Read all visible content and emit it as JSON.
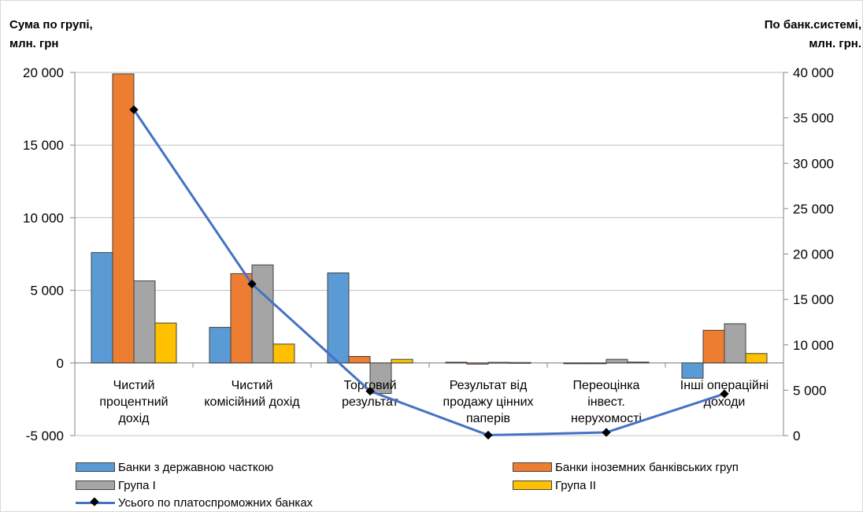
{
  "left_axis_title": [
    "Сума по групі,",
    "млн. грн"
  ],
  "right_axis_title": [
    "По банк.системі,",
    "млн. грн."
  ],
  "chart_data": {
    "type": "bar",
    "categories": [
      [
        "Чистий",
        "процентний",
        "дохід"
      ],
      [
        "Чистий",
        "комісійний дохід"
      ],
      [
        "Торговий",
        "результат"
      ],
      [
        "Результат від",
        "продажу цінних",
        "паперів"
      ],
      [
        "Переоцінка",
        "інвест.",
        "нерухомості"
      ],
      [
        "Інші операційні",
        "доходи"
      ]
    ],
    "series": [
      {
        "name": "Банки з державною часткою",
        "color": "#5b9bd5",
        "values": [
          7600,
          2450,
          6200,
          50,
          -30,
          -1050
        ]
      },
      {
        "name": "Банки іноземних банківських груп",
        "color": "#ed7d31",
        "values": [
          19900,
          6150,
          450,
          -80,
          0,
          2250
        ]
      },
      {
        "name": "Група I",
        "color": "#a5a5a5",
        "values": [
          5650,
          6750,
          -2100,
          40,
          250,
          2700
        ]
      },
      {
        "name": "Група II",
        "color": "#ffc000",
        "values": [
          2750,
          1300,
          250,
          30,
          60,
          650
        ]
      }
    ],
    "line_series": {
      "name": "Усього по платоспроможних банках",
      "color": "#4472c4",
      "axis": "right",
      "values": [
        35900,
        16700,
        4900,
        50,
        350,
        4600
      ]
    },
    "left_axis": {
      "min": -5000,
      "max": 20000,
      "step": 5000,
      "tick_labels": [
        "-5 000",
        "0",
        "5 000",
        "10 000",
        "15 000",
        "20 000"
      ]
    },
    "right_axis": {
      "min": 0,
      "max": 40000,
      "step": 5000,
      "tick_labels": [
        "0",
        "5 000",
        "10 000",
        "15 000",
        "20 000",
        "25 000",
        "30 000",
        "35 000",
        "40 000"
      ]
    },
    "grid": true,
    "legend_position": "bottom"
  }
}
